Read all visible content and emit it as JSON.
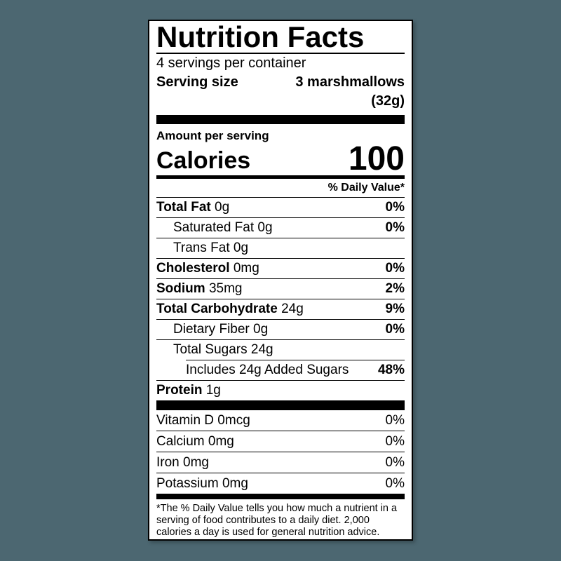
{
  "colors": {
    "background": "#4C6771",
    "label_background": "#FFFFFF",
    "text": "#000000"
  },
  "label": {
    "title": "Nutrition Facts",
    "servings_per_container": "4 servings per container",
    "serving_size_label": "Serving size",
    "serving_size_value": "3 marshmallows",
    "serving_size_weight": "(32g)",
    "amount_per_serving": "Amount per serving",
    "calories_label": "Calories",
    "calories_value": "100",
    "daily_value_header": "% Daily Value*",
    "nutrients": [
      {
        "name": "Total Fat",
        "amount": "0g",
        "dv": "0%"
      },
      {
        "name": "Saturated Fat",
        "amount": "0g",
        "dv": "0%"
      },
      {
        "name": "Trans Fat",
        "amount": "0g",
        "dv": ""
      },
      {
        "name": "Cholesterol",
        "amount": "0mg",
        "dv": "0%"
      },
      {
        "name": "Sodium",
        "amount": "35mg",
        "dv": "2%"
      },
      {
        "name": "Total Carbohydrate",
        "amount": "24g",
        "dv": "9%"
      },
      {
        "name": "Dietary Fiber",
        "amount": "0g",
        "dv": "0%"
      },
      {
        "name": "Total Sugars",
        "amount": "24g",
        "dv": ""
      },
      {
        "name": "Includes 24g Added Sugars",
        "amount": "",
        "dv": "48%"
      },
      {
        "name": "Protein",
        "amount": "1g",
        "dv": ""
      }
    ],
    "micronutrients": [
      {
        "name": "Vitamin D",
        "amount": "0mcg",
        "dv": "0%"
      },
      {
        "name": "Calcium",
        "amount": "0mg",
        "dv": "0%"
      },
      {
        "name": "Iron",
        "amount": "0mg",
        "dv": "0%"
      },
      {
        "name": "Potassium",
        "amount": "0mg",
        "dv": "0%"
      }
    ],
    "footnote": "*The % Daily Value tells you how much a nutrient in a serving of food contributes to a daily diet. 2,000 calories a day is used for general nutrition advice."
  }
}
